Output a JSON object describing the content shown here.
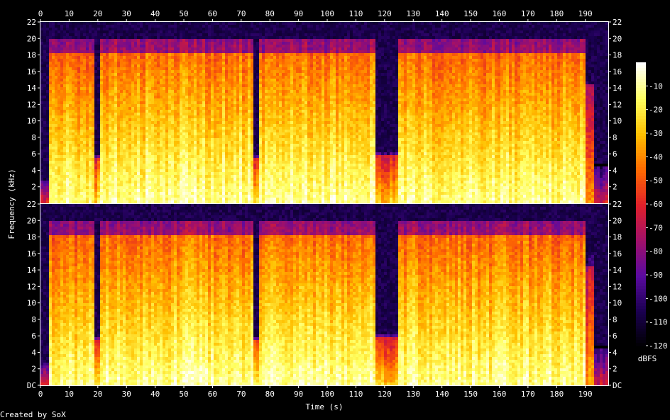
{
  "chart_data": {
    "type": "heatmap",
    "title": "",
    "xlabel": "Time (s)",
    "ylabel": "Frequency (kHz)",
    "colorbar_label": "dBFS",
    "credit": "Created by SoX",
    "xlim": [
      0,
      198
    ],
    "ylim": [
      0,
      22
    ],
    "x_ticks": [
      0,
      10,
      20,
      30,
      40,
      50,
      60,
      70,
      80,
      90,
      100,
      110,
      120,
      130,
      140,
      150,
      160,
      170,
      180,
      190
    ],
    "y_ticks": [
      "DC",
      "2",
      "4",
      "6",
      "8",
      "10",
      "12",
      "14",
      "16",
      "18",
      "20",
      "22"
    ],
    "colorbar_ticks": [
      -10,
      -20,
      -30,
      -40,
      -50,
      -60,
      -70,
      -80,
      -90,
      -100,
      -110,
      -120
    ],
    "colorbar_range": [
      -120,
      0
    ],
    "channels": 2,
    "colormap": [
      "#000000",
      "#1a0050",
      "#5a0aa0",
      "#a0106a",
      "#e0202a",
      "#ff6a00",
      "#ffc000",
      "#ffff60",
      "#ffffff"
    ],
    "segments": [
      {
        "start": 0,
        "end": 3,
        "cutoff_khz": 3,
        "level": 0.25
      },
      {
        "start": 3,
        "end": 18.5,
        "cutoff_khz": 20,
        "level": 0.62
      },
      {
        "start": 18.5,
        "end": 20.5,
        "cutoff_khz": 6,
        "level": 0.55
      },
      {
        "start": 20.5,
        "end": 74,
        "cutoff_khz": 20,
        "level": 0.65
      },
      {
        "start": 74,
        "end": 76,
        "cutoff_khz": 6,
        "level": 0.55
      },
      {
        "start": 76,
        "end": 117,
        "cutoff_khz": 20,
        "level": 0.65
      },
      {
        "start": 117,
        "end": 125,
        "cutoff_khz": 6.5,
        "level": 0.5
      },
      {
        "start": 125,
        "end": 190.5,
        "cutoff_khz": 20,
        "level": 0.64
      },
      {
        "start": 190.5,
        "end": 193,
        "cutoff_khz": 16,
        "level": 0.45
      },
      {
        "start": 193,
        "end": 198,
        "cutoff_khz": 5,
        "level": 0.2
      }
    ]
  }
}
